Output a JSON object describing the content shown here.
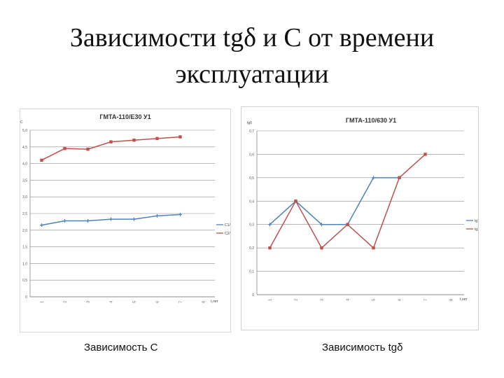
{
  "slide": {
    "title_line1": "Зависимости tgδ и С от времени",
    "title_line2": "эксплуатации",
    "caption_left": "Зависимость С",
    "caption_right": "Зависимость tgδ"
  },
  "colors": {
    "series1": "#4f81bd",
    "series2": "#c0504d",
    "grid": "#8c8c8c"
  },
  "chart_data": [
    {
      "type": "line",
      "title": "ГМТА-110/Е30 У1",
      "ylabel": "С",
      "xlabel": "t,лет",
      "ylim": [
        0,
        5
      ],
      "y_ticks": [
        "0",
        "0,5",
        "1,0",
        "1,5",
        "2,0",
        "2,5",
        "3,0",
        "3,5",
        "4,0",
        "4,5",
        "5,0"
      ],
      "categories": [
        "1",
        "2",
        "3",
        "4",
        "5",
        "6",
        "7",
        "8"
      ],
      "series": [
        {
          "name": "С1/3",
          "values": [
            2.15,
            2.28,
            2.28,
            2.33,
            2.33,
            2.43,
            2.47,
            null
          ]
        },
        {
          "name": "С2/3",
          "values": [
            4.1,
            4.45,
            4.43,
            4.65,
            4.7,
            4.75,
            4.8,
            null
          ]
        }
      ],
      "legend": "right",
      "grid": true
    },
    {
      "type": "line",
      "title": "ГМТА-110/630 У1",
      "ylabel": "tgδ",
      "xlabel": "t,лет",
      "ylim": [
        0,
        0.7
      ],
      "y_ticks": [
        "0",
        "0,1",
        "0,2",
        "0,3",
        "0,4",
        "0,5",
        "0,6",
        "0,7"
      ],
      "categories": [
        "1",
        "2",
        "3",
        "4",
        "5",
        "6",
        "7",
        "8"
      ],
      "series": [
        {
          "name": "tg1",
          "values": [
            0.3,
            0.4,
            0.3,
            0.3,
            0.5,
            0.5,
            null,
            null
          ]
        },
        {
          "name": "tg2",
          "values": [
            0.2,
            0.4,
            0.2,
            0.3,
            0.2,
            0.5,
            0.6,
            null
          ]
        }
      ],
      "legend": "right",
      "grid": true
    }
  ]
}
